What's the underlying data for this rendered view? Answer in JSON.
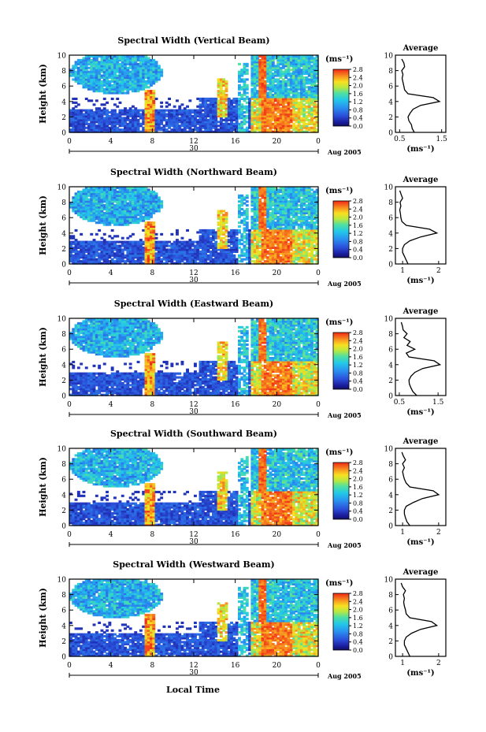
{
  "figure": {
    "xlabel": "Local Time",
    "date_label": "Aug 2005",
    "day_label": "30",
    "colorbar_unit": "(ms⁻¹)",
    "colorbar_ticks": [
      "0.0",
      "0.4",
      "0.8",
      "1.2",
      "1.6",
      "2.0",
      "2.4",
      "2.8"
    ],
    "profile_title": "Average",
    "profile_xlabel": "(ms⁻¹)"
  },
  "chart_data": [
    {
      "type": "heatmap",
      "title": "Spectral Width (Vertical Beam)",
      "ylabel": "Height (km)",
      "x_ticks": [
        "0",
        "4",
        "8",
        "12",
        "16",
        "20",
        "0"
      ],
      "y_ticks": [
        "0",
        "2",
        "4",
        "6",
        "8",
        "10"
      ],
      "xlim": [
        0,
        24
      ],
      "ylim": [
        0,
        10
      ],
      "zlim": [
        0,
        2.8
      ],
      "colorbar_ticks": [
        "0.0",
        "0.4",
        "0.8",
        "1.2",
        "1.6",
        "2.0",
        "2.4",
        "2.8"
      ],
      "profile": {
        "title": "Average",
        "x_ticks": [
          "0.5",
          "1.5"
        ],
        "xlim": [
          0.4,
          1.6
        ],
        "height": [
          0,
          0.5,
          1,
          1.5,
          2,
          2.5,
          3,
          3.5,
          4,
          4.5,
          5,
          5.5,
          6,
          6.5,
          7,
          7.5,
          8,
          8.5,
          9,
          9.5
        ],
        "value": [
          0.85,
          0.8,
          0.78,
          0.72,
          0.7,
          0.75,
          0.82,
          1.0,
          1.45,
          1.3,
          0.7,
          0.62,
          0.6,
          0.58,
          0.56,
          0.58,
          0.55,
          0.62,
          0.6,
          0.55
        ]
      }
    },
    {
      "type": "heatmap",
      "title": "Spectral Width (Northward Beam)",
      "ylabel": "Height (km)",
      "x_ticks": [
        "0",
        "4",
        "8",
        "12",
        "16",
        "20",
        "0"
      ],
      "y_ticks": [
        "0",
        "2",
        "4",
        "6",
        "8",
        "10"
      ],
      "xlim": [
        0,
        24
      ],
      "ylim": [
        0,
        10
      ],
      "zlim": [
        0,
        2.8
      ],
      "colorbar_ticks": [
        "0.0",
        "0.4",
        "0.8",
        "1.2",
        "1.6",
        "2.0",
        "2.4",
        "2.8"
      ],
      "profile": {
        "title": "Average",
        "x_ticks": [
          "1",
          "2"
        ],
        "xlim": [
          0.8,
          2.2
        ],
        "height": [
          0,
          0.5,
          1,
          1.5,
          2,
          2.5,
          3,
          3.5,
          4,
          4.5,
          5,
          5.5,
          6,
          6.5,
          7,
          7.5,
          8,
          8.5,
          9,
          9.5
        ],
        "value": [
          1.15,
          1.1,
          1.05,
          1.0,
          1.0,
          1.05,
          1.2,
          1.5,
          1.95,
          1.75,
          1.1,
          0.98,
          0.95,
          0.94,
          0.92,
          0.95,
          0.93,
          1.0,
          0.96,
          0.92
        ]
      }
    },
    {
      "type": "heatmap",
      "title": "Spectral Width (Eastward Beam)",
      "ylabel": "Height (km)",
      "x_ticks": [
        "0",
        "4",
        "8",
        "12",
        "16",
        "20",
        "0"
      ],
      "y_ticks": [
        "0",
        "2",
        "4",
        "6",
        "8",
        "10"
      ],
      "xlim": [
        0,
        24
      ],
      "ylim": [
        0,
        10
      ],
      "zlim": [
        0,
        2.8
      ],
      "colorbar_ticks": [
        "0.0",
        "0.4",
        "0.8",
        "1.2",
        "1.6",
        "2.0",
        "2.4",
        "2.8"
      ],
      "profile": {
        "title": "Average",
        "x_ticks": [
          "0.5",
          "1.5"
        ],
        "xlim": [
          0.4,
          1.7
        ],
        "height": [
          0,
          0.5,
          1,
          1.5,
          2,
          2.5,
          3,
          3.5,
          4,
          4.5,
          5,
          5.5,
          6,
          6.5,
          7,
          7.5,
          8,
          8.5,
          9,
          9.5
        ],
        "value": [
          0.95,
          0.85,
          0.8,
          0.76,
          0.75,
          0.8,
          0.9,
          1.1,
          1.55,
          1.4,
          0.75,
          0.68,
          0.9,
          0.7,
          0.78,
          0.62,
          0.7,
          0.6,
          0.58,
          0.55
        ]
      }
    },
    {
      "type": "heatmap",
      "title": "Spectral Width (Southward Beam)",
      "ylabel": "Height (km)",
      "x_ticks": [
        "0",
        "4",
        "8",
        "12",
        "16",
        "20",
        "0"
      ],
      "y_ticks": [
        "0",
        "2",
        "4",
        "6",
        "8",
        "10"
      ],
      "xlim": [
        0,
        24
      ],
      "ylim": [
        0,
        10
      ],
      "zlim": [
        0,
        2.8
      ],
      "colorbar_ticks": [
        "0.0",
        "0.4",
        "0.8",
        "1.2",
        "1.6",
        "2.0",
        "2.4",
        "2.8"
      ],
      "profile": {
        "title": "Average",
        "x_ticks": [
          "1",
          "2"
        ],
        "xlim": [
          0.8,
          2.2
        ],
        "height": [
          0,
          0.5,
          1,
          1.5,
          2,
          2.5,
          3,
          3.5,
          4,
          4.5,
          5,
          5.5,
          6,
          6.5,
          7,
          7.5,
          8,
          8.5,
          9,
          9.5
        ],
        "value": [
          1.2,
          1.12,
          1.08,
          1.05,
          1.05,
          1.1,
          1.3,
          1.55,
          2.0,
          1.85,
          1.2,
          1.1,
          1.05,
          1.02,
          1.0,
          1.05,
          1.0,
          1.08,
          1.02,
          0.98
        ]
      }
    },
    {
      "type": "heatmap",
      "title": "Spectral Width (Westward Beam)",
      "ylabel": "Height (km)",
      "x_ticks": [
        "0",
        "4",
        "8",
        "12",
        "16",
        "20",
        "0"
      ],
      "y_ticks": [
        "0",
        "2",
        "4",
        "6",
        "8",
        "10"
      ],
      "xlim": [
        0,
        24
      ],
      "ylim": [
        0,
        10
      ],
      "zlim": [
        0,
        2.8
      ],
      "colorbar_ticks": [
        "0.0",
        "0.4",
        "0.8",
        "1.2",
        "1.6",
        "2.0",
        "2.4",
        "2.8"
      ],
      "profile": {
        "title": "Average",
        "x_ticks": [
          "1",
          "2"
        ],
        "xlim": [
          0.8,
          2.2
        ],
        "height": [
          0,
          0.5,
          1,
          1.5,
          2,
          2.5,
          3,
          3.5,
          4,
          4.5,
          5,
          5.5,
          6,
          6.5,
          7,
          7.5,
          8,
          8.5,
          9,
          9.5
        ],
        "value": [
          1.2,
          1.15,
          1.1,
          1.05,
          1.05,
          1.1,
          1.25,
          1.5,
          1.95,
          1.8,
          1.2,
          1.1,
          1.08,
          1.05,
          1.03,
          1.05,
          1.02,
          1.08,
          1.0,
          0.96
        ]
      }
    }
  ]
}
